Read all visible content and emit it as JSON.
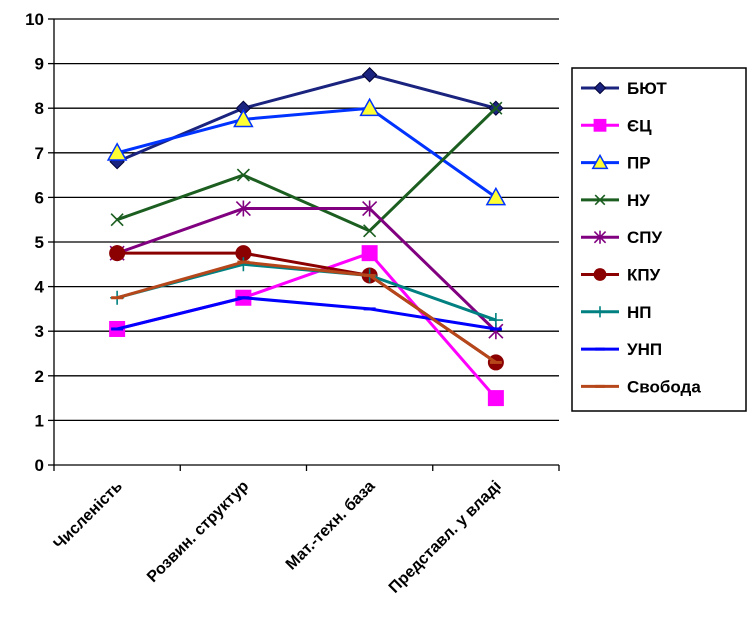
{
  "chart_data": {
    "type": "line",
    "categories": [
      "Численість",
      "Розвин. структур",
      "Мат.-техн. база",
      "Представл. у владі"
    ],
    "ylim": [
      0,
      10
    ],
    "yticks": [
      0,
      1,
      2,
      3,
      4,
      5,
      6,
      7,
      8,
      9,
      10
    ],
    "grid": "horizontal",
    "legend_position": "right",
    "series": [
      {
        "name": "БЮТ",
        "values": [
          6.8,
          8.0,
          8.75,
          8.0
        ],
        "color": "#1a237e",
        "marker": "diamond"
      },
      {
        "name": "ЄЦ",
        "values": [
          3.05,
          3.75,
          4.75,
          1.5
        ],
        "color": "#ff00ff",
        "marker": "square"
      },
      {
        "name": "ПР",
        "values": [
          7.0,
          7.75,
          8.0,
          6.0
        ],
        "color": "#0033ff",
        "marker": "triangle"
      },
      {
        "name": "НУ",
        "values": [
          5.5,
          6.5,
          5.25,
          8.0
        ],
        "color": "#1b5e20",
        "marker": "x"
      },
      {
        "name": "СПУ",
        "values": [
          4.75,
          5.75,
          5.75,
          3.0
        ],
        "color": "#800080",
        "marker": "star"
      },
      {
        "name": "КПУ",
        "values": [
          4.75,
          4.75,
          4.25,
          2.3
        ],
        "color": "#8b0000",
        "marker": "circle"
      },
      {
        "name": "НП",
        "values": [
          3.75,
          4.5,
          4.25,
          3.25
        ],
        "color": "#008080",
        "marker": "plus"
      },
      {
        "name": "УНП",
        "values": [
          3.05,
          3.75,
          3.5,
          3.05
        ],
        "color": "#0000ff",
        "marker": "dash"
      },
      {
        "name": "Свобода",
        "values": [
          3.75,
          4.55,
          4.25,
          2.3
        ],
        "color": "#b5471b",
        "marker": "dash"
      }
    ]
  }
}
